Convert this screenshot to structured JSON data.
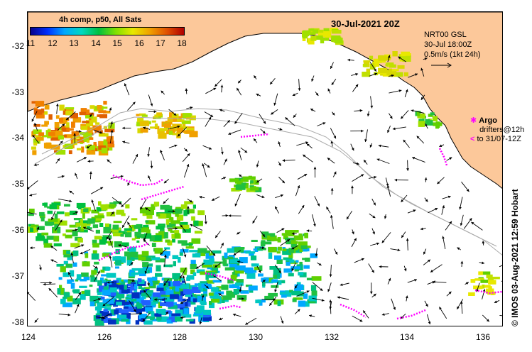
{
  "map": {
    "date_title": "30-Jul-2021 20Z",
    "colorbar_title": "4h comp, p50, All Sats",
    "colorbar_ticks": [
      "11",
      "12",
      "13",
      "14",
      "15",
      "16",
      "17",
      "18"
    ],
    "legend_lines": [
      "NRT00 GSL",
      "30-Jul 18:00Z",
      "0.5m/s (1kt 24h)"
    ],
    "argo_label": "Argo",
    "drifters_label_1": "drifters@12h",
    "drifters_label_2": "to 31/07-12Z",
    "credit": "© IMOS 03-Aug-2021 12:59 Hobart",
    "y_labels": [
      "-32",
      "-33",
      "-34",
      "-35",
      "-36",
      "-37",
      "-38"
    ],
    "x_labels": [
      "124",
      "126",
      "128",
      "130",
      "132",
      "134",
      "136"
    ],
    "colors": {
      "land": "#fcc89a",
      "drifter": "#ff00ff",
      "bathy": "#aaaaaa"
    }
  }
}
